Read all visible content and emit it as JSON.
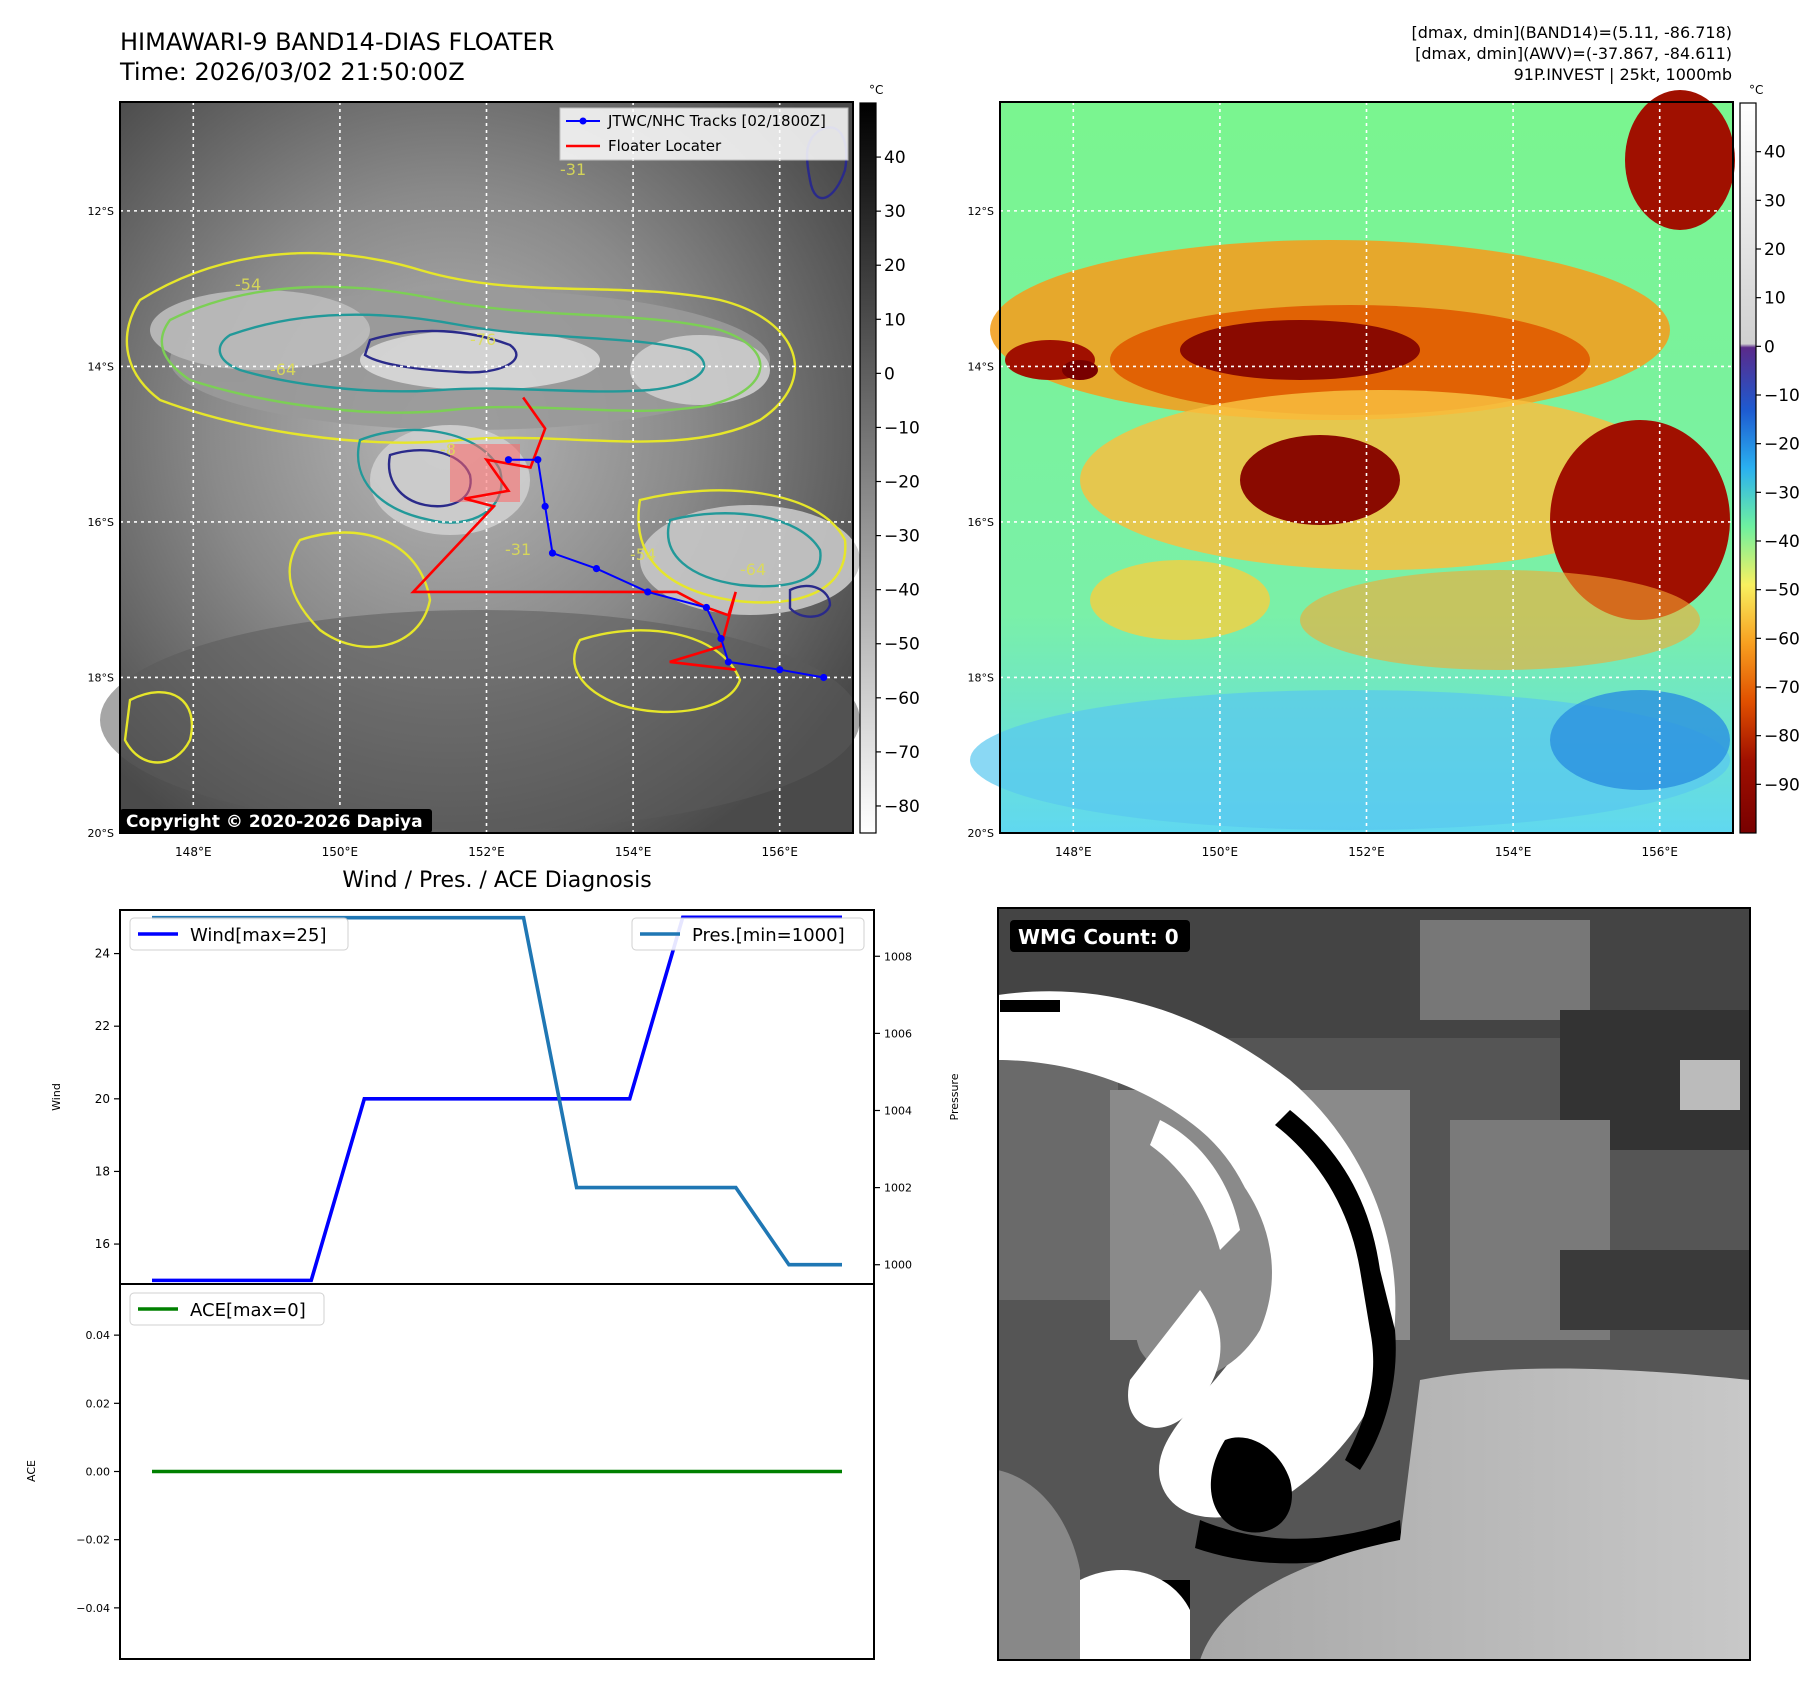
{
  "header": {
    "title_line1": "HIMAWARI-9 BAND14-DIAS FLOATER",
    "title_line2": "Time: 2026/03/02 21:50:00Z",
    "info_line1": "[dmax, dmin](BAND14)=(5.11, -86.718)",
    "info_line2": "[dmax, dmin](AWV)=(-37.867, -84.611)",
    "info_line3": "91P.INVEST | 25kt, 1000mb"
  },
  "map": {
    "lon_ticks": [
      "148°E",
      "150°E",
      "152°E",
      "154°E",
      "156°E"
    ],
    "lat_ticks": [
      "12°S",
      "14°S",
      "16°S",
      "18°S",
      "20°S"
    ],
    "lon_range": [
      147.0,
      157.0
    ],
    "lat_range": [
      -20.0,
      -10.6
    ],
    "copyright": "Copyright © 2020-2026 Dapiya",
    "legend": {
      "tracks": "JTWC/NHC Tracks [02/1800Z]",
      "floater": "Floater Locater"
    },
    "track_color": "#0000ff",
    "floater_color": "#ff0000",
    "jtwc_track": [
      {
        "lon": 152.3,
        "lat": -15.2
      },
      {
        "lon": 152.7,
        "lat": -15.2
      },
      {
        "lon": 152.8,
        "lat": -15.8
      },
      {
        "lon": 152.9,
        "lat": -16.4
      },
      {
        "lon": 153.5,
        "lat": -16.6
      },
      {
        "lon": 154.2,
        "lat": -16.9
      },
      {
        "lon": 155.0,
        "lat": -17.1
      },
      {
        "lon": 155.2,
        "lat": -17.5
      },
      {
        "lon": 155.3,
        "lat": -17.8
      },
      {
        "lon": 156.0,
        "lat": -17.9
      },
      {
        "lon": 156.6,
        "lat": -18.0
      }
    ],
    "floater_track": [
      {
        "lon": 152.5,
        "lat": -14.4
      },
      {
        "lon": 152.8,
        "lat": -14.8
      },
      {
        "lon": 152.6,
        "lat": -15.3
      },
      {
        "lon": 152.0,
        "lat": -15.2
      },
      {
        "lon": 152.3,
        "lat": -15.6
      },
      {
        "lon": 151.7,
        "lat": -15.7
      },
      {
        "lon": 152.1,
        "lat": -15.8
      },
      {
        "lon": 151.0,
        "lat": -16.9
      },
      {
        "lon": 154.6,
        "lat": -16.9
      },
      {
        "lon": 155.0,
        "lat": -17.1
      },
      {
        "lon": 155.3,
        "lat": -17.2
      },
      {
        "lon": 155.4,
        "lat": -16.9
      },
      {
        "lon": 155.2,
        "lat": -17.6
      },
      {
        "lon": 154.5,
        "lat": -17.8
      },
      {
        "lon": 155.4,
        "lat": -17.9
      }
    ],
    "contour_labels": [
      "-31",
      "-54",
      "-76",
      "-64",
      "-8",
      "-31",
      "-54",
      "-64"
    ]
  },
  "colorbar_gray": {
    "unit": "°C",
    "ticks": [
      "40",
      "30",
      "20",
      "10",
      "0",
      "−10",
      "−20",
      "−30",
      "−40",
      "−50",
      "−60",
      "−70",
      "−80"
    ],
    "range": [
      -85,
      50
    ]
  },
  "colorbar_color": {
    "unit": "°C",
    "ticks": [
      "40",
      "30",
      "20",
      "10",
      "0",
      "−10",
      "−20",
      "−30",
      "−40",
      "−50",
      "−60",
      "−70",
      "−80",
      "−90"
    ],
    "range": [
      -100,
      50
    ]
  },
  "diagnosis": {
    "title": "Wind / Pres. / ACE Diagnosis",
    "wind_legend": "Wind[max=25]",
    "pres_legend": "Pres.[min=1000]",
    "ace_legend": "ACE[max=0]",
    "wind_ylabel": "Wind",
    "pres_ylabel": "Pressure",
    "ace_ylabel": "ACE",
    "wind_ticks": [
      "16",
      "18",
      "20",
      "22",
      "24"
    ],
    "pres_ticks": [
      "1000",
      "1002",
      "1004",
      "1006",
      "1008"
    ],
    "ace_ticks": [
      "0.04",
      "0.02",
      "0.00",
      "−0.02",
      "−0.04"
    ],
    "wind_color": "#0000ff",
    "pres_color": "#1f77b4",
    "ace_color": "#008000"
  },
  "chart_data": [
    {
      "type": "line",
      "title": "Wind / Pres. / ACE Diagnosis",
      "x": [
        0,
        1,
        2,
        3,
        4,
        5,
        6,
        7,
        8,
        9,
        10,
        11,
        12,
        13
      ],
      "series": [
        {
          "name": "Wind[max=25]",
          "axis": "left",
          "values": [
            15,
            15,
            15,
            15,
            20,
            20,
            20,
            20,
            20,
            20,
            25,
            25,
            25,
            25
          ]
        },
        {
          "name": "Pres.[min=1000]",
          "axis": "right",
          "values": [
            1009,
            1009,
            1009,
            1009,
            1009,
            1009,
            1009,
            1009,
            1002,
            1002,
            1002,
            1002,
            1000,
            1000
          ]
        }
      ],
      "ylabel": "Wind",
      "ylabel_right": "Pressure",
      "ylim": [
        14.9,
        25.2
      ],
      "ylim_right": [
        999.5,
        1009.2
      ]
    },
    {
      "type": "line",
      "x": [
        0,
        1,
        2,
        3,
        4,
        5,
        6,
        7,
        8,
        9,
        10,
        11,
        12,
        13
      ],
      "series": [
        {
          "name": "ACE[max=0]",
          "values": [
            0,
            0,
            0,
            0,
            0,
            0,
            0,
            0,
            0,
            0,
            0,
            0,
            0,
            0
          ]
        }
      ],
      "ylabel": "ACE",
      "ylim": [
        -0.055,
        0.055
      ]
    }
  ],
  "wmg": {
    "label": "WMG Count: 0"
  }
}
